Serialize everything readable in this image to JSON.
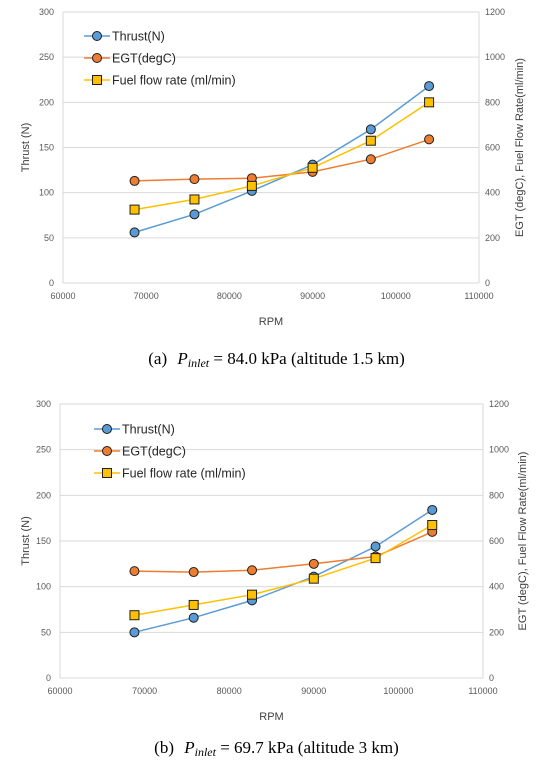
{
  "colors": {
    "thrust": "#5b9bd5",
    "egt": "#ed7d31",
    "fuel": "#ffc000",
    "marker_edge": "#1f1f1f",
    "grid": "#d9d9d9",
    "axis_text": "#595959"
  },
  "chart_data": [
    {
      "type": "line",
      "xlabel": "RPM",
      "ylabel_left": "Thrust (N)",
      "ylabel_right": "EGT (degC), Fuel Flow Rate(ml/min)",
      "xlim": [
        60000,
        110000
      ],
      "ylim_left": [
        0,
        300
      ],
      "ylim_right": [
        0,
        1200
      ],
      "xticks": [
        "60000",
        "70000",
        "80000",
        "90000",
        "100000",
        "110000"
      ],
      "yticks_left": [
        "0",
        "50",
        "100",
        "150",
        "200",
        "250",
        "300"
      ],
      "yticks_right": [
        "0",
        "200",
        "400",
        "600",
        "800",
        "1000",
        "1200"
      ],
      "grid": "horizontal",
      "legend_position": "top-left",
      "x": [
        68600,
        75800,
        82700,
        90000,
        97000,
        104000
      ],
      "series": [
        {
          "name": "Thrust(N)",
          "axis": "left",
          "marker": "circle",
          "color_key": "thrust",
          "values": [
            56,
            76,
            102,
            131,
            170,
            218
          ]
        },
        {
          "name": "EGT(degC)",
          "axis": "left",
          "marker": "circle",
          "color_key": "egt",
          "values": [
            113,
            115,
            116,
            123,
            137,
            159
          ]
        },
        {
          "name": "Fuel flow rate (ml/min)",
          "axis": "right",
          "marker": "square",
          "color_key": "fuel",
          "values": [
            325,
            370,
            430,
            510,
            630,
            800
          ]
        }
      ],
      "caption": {
        "label": "(a)",
        "symbol": "P",
        "subscript": "inlet",
        "text": "= 84.0 kPa (altitude 1.5 km)"
      }
    },
    {
      "type": "line",
      "xlabel": "RPM",
      "ylabel_left": "Thrust (N)",
      "ylabel_right": "EGT (degC), Fuel Flow Rate(ml/min)",
      "xlim": [
        60000,
        110000
      ],
      "ylim_left": [
        0,
        300
      ],
      "ylim_right": [
        0,
        1200
      ],
      "xticks": [
        "60000",
        "70000",
        "80000",
        "90000",
        "100000",
        "110000"
      ],
      "yticks_left": [
        "0",
        "50",
        "100",
        "150",
        "200",
        "250",
        "300"
      ],
      "yticks_right": [
        "0",
        "200",
        "400",
        "600",
        "800",
        "1000",
        "1200"
      ],
      "grid": "horizontal",
      "legend_position": "top-left",
      "x": [
        68800,
        75800,
        82700,
        90000,
        97300,
        104000
      ],
      "series": [
        {
          "name": "Thrust(N)",
          "axis": "left",
          "marker": "circle",
          "color_key": "thrust",
          "values": [
            50,
            66,
            85,
            111,
            144,
            184
          ]
        },
        {
          "name": "EGT(degC)",
          "axis": "left",
          "marker": "circle",
          "color_key": "egt",
          "values": [
            117,
            116,
            118,
            125,
            133,
            160
          ]
        },
        {
          "name": "Fuel flow rate (ml/min)",
          "axis": "right",
          "marker": "square",
          "color_key": "fuel",
          "values": [
            275,
            320,
            365,
            435,
            525,
            670
          ]
        }
      ],
      "caption": {
        "label": "(b)",
        "symbol": "P",
        "subscript": "inlet",
        "text": "= 69.7 kPa (altitude 3 km)"
      }
    }
  ]
}
